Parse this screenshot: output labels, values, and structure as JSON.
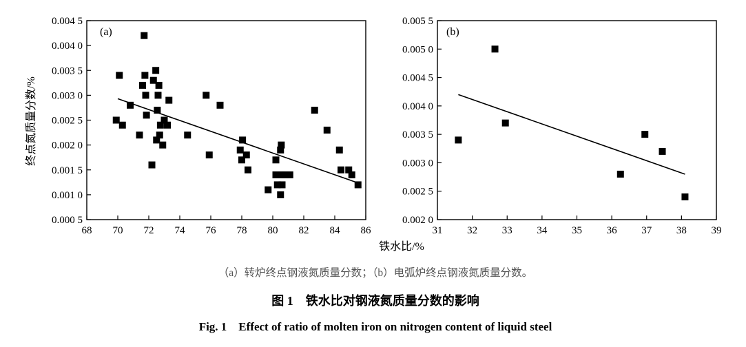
{
  "chart_data": [
    {
      "type": "scatter",
      "panel_label": "(a)",
      "xlabel": "铁水比/%",
      "ylabel": "终点氮质量分数/%",
      "xlim": [
        68,
        86
      ],
      "ylim": [
        0.0005,
        0.0045
      ],
      "xticks": [
        68,
        70,
        72,
        74,
        76,
        78,
        80,
        82,
        84,
        86
      ],
      "xtick_labels": [
        "68",
        "70",
        "72",
        "74",
        "76",
        "78",
        "80",
        "82",
        "84",
        "86"
      ],
      "yticks": [
        0.0005,
        0.001,
        0.0015,
        0.002,
        0.0025,
        0.003,
        0.0035,
        0.004,
        0.0045
      ],
      "ytick_labels": [
        "0.000 5",
        "0.001 0",
        "0.001 5",
        "0.002 0",
        "0.002 5",
        "0.003 0",
        "0.003 5",
        "0.004 0",
        "0.004 5"
      ],
      "series": [
        {
          "name": "data",
          "points": [
            [
              69.9,
              0.0025
            ],
            [
              70.1,
              0.0034
            ],
            [
              70.3,
              0.0024
            ],
            [
              70.8,
              0.0028
            ],
            [
              71.4,
              0.0022
            ],
            [
              71.6,
              0.0032
            ],
            [
              71.7,
              0.0042
            ],
            [
              71.75,
              0.0034
            ],
            [
              71.8,
              0.003
            ],
            [
              71.85,
              0.0026
            ],
            [
              72.2,
              0.0016
            ],
            [
              72.3,
              0.0033
            ],
            [
              72.45,
              0.0035
            ],
            [
              72.5,
              0.0021
            ],
            [
              72.55,
              0.0027
            ],
            [
              72.6,
              0.003
            ],
            [
              72.65,
              0.0032
            ],
            [
              72.7,
              0.0022
            ],
            [
              72.75,
              0.0024
            ],
            [
              72.9,
              0.002
            ],
            [
              73.0,
              0.0025
            ],
            [
              73.2,
              0.0024
            ],
            [
              73.3,
              0.0029
            ],
            [
              74.5,
              0.0022
            ],
            [
              75.7,
              0.003
            ],
            [
              75.9,
              0.0018
            ],
            [
              76.6,
              0.0028
            ],
            [
              77.9,
              0.0019
            ],
            [
              78.0,
              0.0017
            ],
            [
              78.05,
              0.0021
            ],
            [
              78.3,
              0.0018
            ],
            [
              78.4,
              0.0015
            ],
            [
              79.7,
              0.0011
            ],
            [
              80.2,
              0.0017
            ],
            [
              80.2,
              0.0014
            ],
            [
              80.3,
              0.0012
            ],
            [
              80.5,
              0.0019
            ],
            [
              80.55,
              0.002
            ],
            [
              80.6,
              0.0014
            ],
            [
              80.5,
              0.001
            ],
            [
              80.6,
              0.0012
            ],
            [
              80.8,
              0.0014
            ],
            [
              81.1,
              0.0014
            ],
            [
              82.7,
              0.0027
            ],
            [
              83.5,
              0.0023
            ],
            [
              84.3,
              0.0019
            ],
            [
              84.4,
              0.0015
            ],
            [
              84.9,
              0.0015
            ],
            [
              85.1,
              0.0014
            ],
            [
              85.5,
              0.0012
            ]
          ]
        }
      ],
      "trendline": {
        "x": [
          70,
          85.3
        ],
        "y": [
          0.00293,
          0.00126
        ]
      }
    },
    {
      "type": "scatter",
      "panel_label": "(b)",
      "xlabel": "铁水比/%",
      "ylabel": "",
      "xlim": [
        31,
        39
      ],
      "ylim": [
        0.002,
        0.0055
      ],
      "xticks": [
        31,
        32,
        33,
        34,
        35,
        36,
        37,
        38,
        39
      ],
      "xtick_labels": [
        "31",
        "32",
        "33",
        "34",
        "35",
        "36",
        "37",
        "38",
        "39"
      ],
      "yticks": [
        0.002,
        0.0025,
        0.003,
        0.0035,
        0.004,
        0.0045,
        0.005,
        0.0055
      ],
      "ytick_labels": [
        "0.002 0",
        "0.002 5",
        "0.003 0",
        "0.003 5",
        "0.004 0",
        "0.004 5",
        "0.005 0",
        "0.005 5"
      ],
      "series": [
        {
          "name": "data",
          "points": [
            [
              31.6,
              0.0034
            ],
            [
              32.65,
              0.005
            ],
            [
              32.95,
              0.0037
            ],
            [
              36.25,
              0.0028
            ],
            [
              36.95,
              0.0035
            ],
            [
              37.45,
              0.0032
            ],
            [
              38.1,
              0.0024
            ]
          ]
        }
      ],
      "trendline": {
        "x": [
          31.6,
          38.1
        ],
        "y": [
          0.0042,
          0.0028
        ]
      }
    }
  ],
  "captions": {
    "subcaption": "（a）转炉终点钢液氮质量分数；（b）电弧炉终点钢液氮质量分数。",
    "title_cn": "图 1　铁水比对钢液氮质量分数的影响",
    "title_en": "Fig. 1　Effect of ratio of molten iron on nitrogen content of liquid steel"
  }
}
